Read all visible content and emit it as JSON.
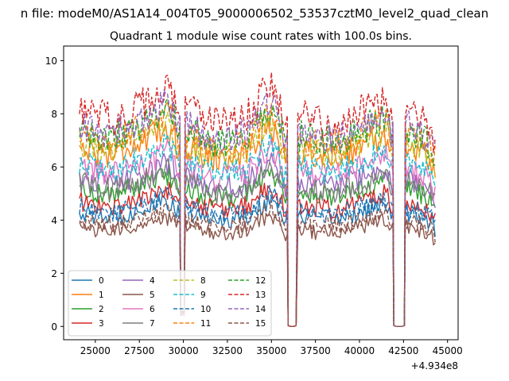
{
  "suptitle": "n file: modeM0/AS1A14_004T05_9000006502_53537cztM0_level2_quad_clean",
  "chart_data": {
    "type": "line",
    "title": "Quadrant 1 module wise count rates with 100.0s bins.",
    "xlabel": "",
    "ylabel": "",
    "offset_label": "+4.934e8",
    "xlim": [
      23200,
      45600
    ],
    "ylim": [
      -0.5,
      10.55
    ],
    "xticks": [
      25000,
      27500,
      30000,
      32500,
      35000,
      37500,
      40000,
      42500,
      45000
    ],
    "xtick_labels": [
      "25000",
      "27500",
      "30000",
      "32500",
      "35000",
      "37500",
      "40000",
      "42500",
      "45000"
    ],
    "yticks": [
      0,
      2,
      4,
      6,
      8,
      10
    ],
    "ytick_labels": [
      "0",
      "2",
      "4",
      "6",
      "8",
      "10"
    ],
    "legend_position": "lower-left",
    "segments": [
      [
        24100,
        29800
      ],
      [
        30100,
        35900
      ],
      [
        36500,
        41900
      ],
      [
        42600,
        44350
      ]
    ],
    "gaps": [
      [
        29850,
        30050
      ],
      [
        35950,
        36400
      ],
      [
        41950,
        42550
      ]
    ],
    "envelope": {
      "x": [
        24100,
        25000,
        26000,
        27000,
        28000,
        29000,
        29700,
        30200,
        31000,
        32000,
        33000,
        34000,
        35000,
        35700,
        36500,
        37500,
        38500,
        39500,
        40500,
        41500,
        41900,
        42600,
        43500,
        44350
      ],
      "factor": [
        1.0,
        0.97,
        0.95,
        1.0,
        1.03,
        1.1,
        1.04,
        1.0,
        0.96,
        0.93,
        0.94,
        1.0,
        1.12,
        0.97,
        0.97,
        0.95,
        0.94,
        0.97,
        1.02,
        1.06,
        1.0,
        1.0,
        0.96,
        0.9
      ]
    },
    "series": [
      {
        "name": "0",
        "base": 4.3,
        "color": "#1f77b4",
        "dash": "solid"
      },
      {
        "name": "1",
        "base": 6.8,
        "color": "#ff7f0e",
        "dash": "solid"
      },
      {
        "name": "2",
        "base": 5.2,
        "color": "#2ca02c",
        "dash": "solid"
      },
      {
        "name": "3",
        "base": 4.7,
        "color": "#d62728",
        "dash": "solid"
      },
      {
        "name": "4",
        "base": 5.6,
        "color": "#9467bd",
        "dash": "solid"
      },
      {
        "name": "5",
        "base": 3.75,
        "color": "#8c564b",
        "dash": "solid"
      },
      {
        "name": "6",
        "base": 6.0,
        "color": "#e377c2",
        "dash": "solid"
      },
      {
        "name": "7",
        "base": 5.4,
        "color": "#7f7f7f",
        "dash": "solid"
      },
      {
        "name": "8",
        "base": 6.9,
        "color": "#bcbd22",
        "dash": "dashed"
      },
      {
        "name": "9",
        "base": 6.2,
        "color": "#17becf",
        "dash": "dashed"
      },
      {
        "name": "10",
        "base": 4.5,
        "color": "#1f77b4",
        "dash": "dashed"
      },
      {
        "name": "11",
        "base": 7.3,
        "color": "#ff7f0e",
        "dash": "dashed"
      },
      {
        "name": "12",
        "base": 7.4,
        "color": "#2ca02c",
        "dash": "dashed"
      },
      {
        "name": "13",
        "base": 8.2,
        "color": "#d62728",
        "dash": "dashed"
      },
      {
        "name": "14",
        "base": 7.6,
        "color": "#9467bd",
        "dash": "dashed"
      },
      {
        "name": "15",
        "base": 4.0,
        "color": "#8c564b",
        "dash": "dashed"
      }
    ]
  }
}
